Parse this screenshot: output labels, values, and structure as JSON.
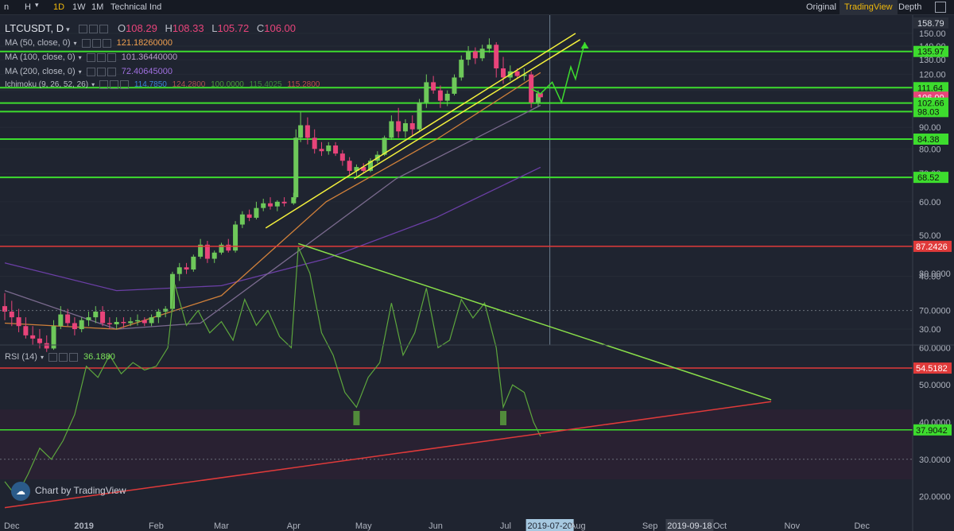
{
  "toolbar": {
    "left_items": [
      "n",
      "H",
      "1D",
      "1W",
      "1M",
      "Technical Ind"
    ],
    "active_item": "1D",
    "right_items": [
      "Original",
      "TradingView",
      "Depth"
    ],
    "active_right": "TradingView"
  },
  "legend": {
    "symbol": "LTCUSDT, D",
    "open_label": "O",
    "open": "108.29",
    "high_label": "H",
    "high": "108.33",
    "low_label": "L",
    "low": "105.72",
    "close_label": "C",
    "close": "106.00",
    "ma50_label": "MA (50, close, 0)",
    "ma50_value": "121.18260000",
    "ma100_label": "MA (100, close, 0)",
    "ma100_value": "101.36440000",
    "ma200_label": "MA (200, close, 0)",
    "ma200_value": "72.40645000",
    "ichimoku_label": "Ichimoku (9, 26, 52, 26)",
    "ichimoku_values": [
      "114.7850",
      "124.2800",
      "100.0000",
      "115.4025",
      "115.2800"
    ],
    "rsi_label": "RSI (14)",
    "rsi_value": "36.1880"
  },
  "watermark": "Chart by TradingView",
  "colors": {
    "background": "#1f2430",
    "up": "#6ec85a",
    "down": "#e8447a",
    "hline": "#3ddc2e",
    "channel": "#f4f03c",
    "ma50": "#d0803a",
    "ma100": "#7a6a8e",
    "ma200": "#6b3fa6",
    "rsi_line": "#5da63d",
    "rsi_band": "#e03a3a"
  },
  "chart_data": [
    {
      "type": "candlestick",
      "title": "LTCUSDT, D",
      "x_tick_labels": [
        "Dec",
        "2019",
        "Feb",
        "Mar",
        "Apr",
        "May",
        "Jun",
        "Jul",
        "2019-07-20",
        "Aug",
        "Sep",
        "2019-09-18",
        "Oct",
        "Nov",
        "Dec"
      ],
      "y_tick_labels": [
        "150.00",
        "140.00",
        "130.00",
        "120.00",
        "110.00",
        "90.00",
        "80.00",
        "70.00",
        "60.00",
        "50.00",
        "40.00",
        "30.00"
      ],
      "ylim": [
        28,
        158
      ],
      "scale": "log",
      "price_labels": [
        {
          "text": "158.79",
          "value": 158.79,
          "kind": "top"
        },
        {
          "text": "135.97",
          "value": 135.97,
          "kind": "level"
        },
        {
          "text": "111.64",
          "value": 111.64,
          "kind": "level"
        },
        {
          "text": "106.00",
          "value": 106.0,
          "kind": "last"
        },
        {
          "text": "102.66",
          "value": 102.66,
          "kind": "level"
        },
        {
          "text": "98.03",
          "value": 98.03,
          "kind": "level"
        },
        {
          "text": "84.38",
          "value": 84.38,
          "kind": "level"
        },
        {
          "text": "68.52",
          "value": 68.52,
          "kind": "level"
        }
      ],
      "horizontal_levels": [
        135.97,
        111.64,
        102.66,
        98.03,
        84.38,
        68.52
      ],
      "candles": [
        {
          "d": "2018-11-28",
          "o": 34.0,
          "h": 36.5,
          "l": 31.5,
          "c": 33.0
        },
        {
          "d": "2018-12-01",
          "o": 33.0,
          "h": 35.0,
          "l": 30.5,
          "c": 32.0
        },
        {
          "d": "2018-12-04",
          "o": 32.0,
          "h": 33.5,
          "l": 29.5,
          "c": 30.5
        },
        {
          "d": "2018-12-07",
          "o": 30.5,
          "h": 32.0,
          "l": 28.5,
          "c": 29.0
        },
        {
          "d": "2018-12-10",
          "o": 29.0,
          "h": 30.5,
          "l": 27.5,
          "c": 28.5
        },
        {
          "d": "2018-12-13",
          "o": 28.5,
          "h": 30.0,
          "l": 27.0,
          "c": 27.8
        },
        {
          "d": "2018-12-16",
          "o": 27.8,
          "h": 29.0,
          "l": 26.5,
          "c": 27.0
        },
        {
          "d": "2018-12-19",
          "o": 27.0,
          "h": 31.5,
          "l": 26.8,
          "c": 30.5
        },
        {
          "d": "2018-12-22",
          "o": 30.5,
          "h": 34.0,
          "l": 30.0,
          "c": 32.5
        },
        {
          "d": "2018-12-25",
          "o": 32.5,
          "h": 33.5,
          "l": 30.5,
          "c": 31.0
        },
        {
          "d": "2018-12-28",
          "o": 31.0,
          "h": 32.0,
          "l": 29.0,
          "c": 30.0
        },
        {
          "d": "2018-12-31",
          "o": 30.0,
          "h": 32.0,
          "l": 29.5,
          "c": 31.5
        },
        {
          "d": "2019-01-03",
          "o": 31.5,
          "h": 33.0,
          "l": 30.5,
          "c": 32.0
        },
        {
          "d": "2019-01-06",
          "o": 32.0,
          "h": 34.0,
          "l": 31.0,
          "c": 33.0
        },
        {
          "d": "2019-01-09",
          "o": 33.0,
          "h": 34.0,
          "l": 30.5,
          "c": 31.0
        },
        {
          "d": "2019-01-12",
          "o": 31.0,
          "h": 32.0,
          "l": 30.0,
          "c": 30.8
        },
        {
          "d": "2019-01-15",
          "o": 30.8,
          "h": 32.0,
          "l": 30.0,
          "c": 31.2
        },
        {
          "d": "2019-01-18",
          "o": 31.2,
          "h": 32.0,
          "l": 30.2,
          "c": 31.0
        },
        {
          "d": "2019-01-21",
          "o": 31.0,
          "h": 32.0,
          "l": 30.5,
          "c": 31.3
        },
        {
          "d": "2019-01-24",
          "o": 31.3,
          "h": 32.5,
          "l": 30.6,
          "c": 31.5
        },
        {
          "d": "2019-01-27",
          "o": 31.5,
          "h": 32.0,
          "l": 30.5,
          "c": 31.0
        },
        {
          "d": "2019-01-30",
          "o": 31.0,
          "h": 32.5,
          "l": 30.5,
          "c": 32.0
        },
        {
          "d": "2019-02-02",
          "o": 32.0,
          "h": 33.5,
          "l": 31.0,
          "c": 33.0
        },
        {
          "d": "2019-02-05",
          "o": 33.0,
          "h": 34.0,
          "l": 32.0,
          "c": 33.5
        },
        {
          "d": "2019-02-08",
          "o": 33.5,
          "h": 41.0,
          "l": 33.0,
          "c": 40.5
        },
        {
          "d": "2019-02-11",
          "o": 40.5,
          "h": 43.0,
          "l": 39.0,
          "c": 42.0
        },
        {
          "d": "2019-02-14",
          "o": 42.0,
          "h": 43.0,
          "l": 40.5,
          "c": 41.5
        },
        {
          "d": "2019-02-17",
          "o": 41.5,
          "h": 45.0,
          "l": 41.0,
          "c": 44.5
        },
        {
          "d": "2019-02-20",
          "o": 44.5,
          "h": 49.0,
          "l": 44.0,
          "c": 47.5
        },
        {
          "d": "2019-02-23",
          "o": 47.5,
          "h": 48.5,
          "l": 43.0,
          "c": 44.0
        },
        {
          "d": "2019-02-26",
          "o": 44.0,
          "h": 46.0,
          "l": 43.0,
          "c": 45.5
        },
        {
          "d": "2019-03-01",
          "o": 45.5,
          "h": 48.0,
          "l": 45.0,
          "c": 47.5
        },
        {
          "d": "2019-03-04",
          "o": 47.5,
          "h": 49.0,
          "l": 45.5,
          "c": 46.0
        },
        {
          "d": "2019-03-07",
          "o": 46.0,
          "h": 54.0,
          "l": 45.5,
          "c": 53.0
        },
        {
          "d": "2019-03-10",
          "o": 53.0,
          "h": 57.0,
          "l": 52.0,
          "c": 56.0
        },
        {
          "d": "2019-03-13",
          "o": 56.0,
          "h": 57.5,
          "l": 54.0,
          "c": 55.0
        },
        {
          "d": "2019-03-16",
          "o": 55.0,
          "h": 60.0,
          "l": 54.5,
          "c": 58.0
        },
        {
          "d": "2019-03-19",
          "o": 58.0,
          "h": 61.0,
          "l": 57.0,
          "c": 59.5
        },
        {
          "d": "2019-03-22",
          "o": 59.5,
          "h": 61.5,
          "l": 57.5,
          "c": 58.5
        },
        {
          "d": "2019-03-25",
          "o": 58.5,
          "h": 60.5,
          "l": 57.0,
          "c": 60.0
        },
        {
          "d": "2019-03-28",
          "o": 60.0,
          "h": 61.5,
          "l": 58.5,
          "c": 59.5
        },
        {
          "d": "2019-04-01",
          "o": 59.5,
          "h": 63.0,
          "l": 59.0,
          "c": 61.5
        },
        {
          "d": "2019-04-02",
          "o": 61.5,
          "h": 89.0,
          "l": 61.0,
          "c": 85.0
        },
        {
          "d": "2019-04-04",
          "o": 85.0,
          "h": 98.0,
          "l": 83.0,
          "c": 91.0
        },
        {
          "d": "2019-04-07",
          "o": 91.0,
          "h": 95.0,
          "l": 82.0,
          "c": 85.0
        },
        {
          "d": "2019-04-10",
          "o": 85.0,
          "h": 89.0,
          "l": 78.0,
          "c": 80.0
        },
        {
          "d": "2019-04-13",
          "o": 80.0,
          "h": 83.0,
          "l": 77.0,
          "c": 79.0
        },
        {
          "d": "2019-04-16",
          "o": 79.0,
          "h": 83.0,
          "l": 77.5,
          "c": 81.5
        },
        {
          "d": "2019-04-19",
          "o": 81.5,
          "h": 83.0,
          "l": 77.0,
          "c": 78.0
        },
        {
          "d": "2019-04-22",
          "o": 78.0,
          "h": 79.5,
          "l": 73.0,
          "c": 75.0
        },
        {
          "d": "2019-04-25",
          "o": 75.0,
          "h": 76.5,
          "l": 69.0,
          "c": 71.0
        },
        {
          "d": "2019-04-28",
          "o": 71.0,
          "h": 73.5,
          "l": 69.0,
          "c": 72.5
        },
        {
          "d": "2019-05-01",
          "o": 72.5,
          "h": 74.0,
          "l": 70.0,
          "c": 71.0
        },
        {
          "d": "2019-05-04",
          "o": 71.0,
          "h": 76.0,
          "l": 70.5,
          "c": 75.0
        },
        {
          "d": "2019-05-07",
          "o": 75.0,
          "h": 79.0,
          "l": 74.0,
          "c": 77.5
        },
        {
          "d": "2019-05-10",
          "o": 77.5,
          "h": 86.0,
          "l": 77.0,
          "c": 85.0
        },
        {
          "d": "2019-05-13",
          "o": 85.0,
          "h": 96.0,
          "l": 84.0,
          "c": 93.0
        },
        {
          "d": "2019-05-16",
          "o": 93.0,
          "h": 100.0,
          "l": 85.0,
          "c": 88.0
        },
        {
          "d": "2019-05-19",
          "o": 88.0,
          "h": 94.0,
          "l": 85.0,
          "c": 92.0
        },
        {
          "d": "2019-05-22",
          "o": 92.0,
          "h": 96.0,
          "l": 86.0,
          "c": 89.0
        },
        {
          "d": "2019-05-25",
          "o": 89.0,
          "h": 105.0,
          "l": 88.0,
          "c": 103.0
        },
        {
          "d": "2019-05-28",
          "o": 103.0,
          "h": 120.0,
          "l": 100.0,
          "c": 115.0
        },
        {
          "d": "2019-05-31",
          "o": 115.0,
          "h": 119.0,
          "l": 108.0,
          "c": 110.0
        },
        {
          "d": "2019-06-03",
          "o": 110.0,
          "h": 113.0,
          "l": 100.0,
          "c": 104.0
        },
        {
          "d": "2019-06-06",
          "o": 104.0,
          "h": 110.0,
          "l": 101.0,
          "c": 108.0
        },
        {
          "d": "2019-06-09",
          "o": 108.0,
          "h": 120.0,
          "l": 107.0,
          "c": 118.0
        },
        {
          "d": "2019-06-12",
          "o": 118.0,
          "h": 133.0,
          "l": 116.0,
          "c": 130.0
        },
        {
          "d": "2019-06-15",
          "o": 130.0,
          "h": 140.0,
          "l": 126.0,
          "c": 136.0
        },
        {
          "d": "2019-06-18",
          "o": 136.0,
          "h": 139.0,
          "l": 127.0,
          "c": 131.0
        },
        {
          "d": "2019-06-21",
          "o": 131.0,
          "h": 141.0,
          "l": 129.0,
          "c": 138.0
        },
        {
          "d": "2019-06-24",
          "o": 138.0,
          "h": 146.0,
          "l": 135.0,
          "c": 141.0
        },
        {
          "d": "2019-06-27",
          "o": 141.0,
          "h": 143.0,
          "l": 118.0,
          "c": 124.0
        },
        {
          "d": "2019-06-30",
          "o": 124.0,
          "h": 132.0,
          "l": 114.0,
          "c": 118.0
        },
        {
          "d": "2019-07-03",
          "o": 118.0,
          "h": 126.0,
          "l": 116.0,
          "c": 122.0
        },
        {
          "d": "2019-07-06",
          "o": 122.0,
          "h": 124.0,
          "l": 117.0,
          "c": 119.0
        },
        {
          "d": "2019-07-09",
          "o": 119.0,
          "h": 124.0,
          "l": 116.0,
          "c": 120.0
        },
        {
          "d": "2019-07-12",
          "o": 120.0,
          "h": 122.0,
          "l": 100.0,
          "c": 103.0
        },
        {
          "d": "2019-07-15",
          "o": 103.0,
          "h": 110.0,
          "l": 101.0,
          "c": 108.3
        },
        {
          "d": "2019-07-16",
          "o": 108.29,
          "h": 108.33,
          "l": 105.72,
          "c": 106.0
        }
      ],
      "channel_lines": [
        {
          "name": "upper",
          "points": [
            [
              "2019-03-20",
              52
            ],
            [
              "2019-07-31",
              150
            ]
          ]
        },
        {
          "name": "lower",
          "points": [
            [
              "2019-04-27",
              68
            ],
            [
              "2019-08-02",
              145
            ]
          ]
        }
      ],
      "projection": [
        [
          "2019-07-12",
          111
        ],
        [
          "2019-07-16",
          108
        ],
        [
          "2019-07-21",
          115
        ],
        [
          "2019-07-25",
          103
        ],
        [
          "2019-07-29",
          125
        ],
        [
          "2019-07-31",
          117
        ],
        [
          "2019-08-04",
          143
        ]
      ],
      "ma200": [
        [
          "2018-11-28",
          43
        ],
        [
          "2019-01-15",
          37
        ],
        [
          "2019-03-01",
          38
        ],
        [
          "2019-04-15",
          44
        ],
        [
          "2019-06-01",
          55
        ],
        [
          "2019-07-16",
          72.4
        ]
      ],
      "ma100": [
        [
          "2018-11-28",
          37
        ],
        [
          "2019-01-15",
          30
        ],
        [
          "2019-02-20",
          31
        ],
        [
          "2019-04-01",
          45
        ],
        [
          "2019-05-15",
          68
        ],
        [
          "2019-07-16",
          101.4
        ]
      ],
      "ma50": [
        [
          "2018-11-28",
          31
        ],
        [
          "2019-01-15",
          30
        ],
        [
          "2019-03-01",
          36
        ],
        [
          "2019-04-15",
          60
        ],
        [
          "2019-06-01",
          84
        ],
        [
          "2019-07-16",
          121.2
        ]
      ],
      "crosshair_date": "2019-07-20"
    },
    {
      "type": "line",
      "title": "RSI (14)",
      "y_tick_labels": [
        "80.0000",
        "70.0000",
        "60.0000",
        "50.0000",
        "40.0000",
        "30.0000",
        "20.0000"
      ],
      "ylim": [
        15,
        90
      ],
      "price_labels": [
        {
          "text": "87.2426",
          "value": 87.2426,
          "kind": "red"
        },
        {
          "text": "54.5182",
          "value": 54.5182,
          "kind": "red"
        },
        {
          "text": "37.9042",
          "value": 37.9042,
          "kind": "green"
        }
      ],
      "dashed_levels": [
        70,
        30
      ],
      "rsi": [
        [
          "2018-11-28",
          24
        ],
        [
          "2018-12-03",
          20
        ],
        [
          "2018-12-08",
          26
        ],
        [
          "2018-12-13",
          33
        ],
        [
          "2018-12-18",
          30
        ],
        [
          "2018-12-23",
          35
        ],
        [
          "2018-12-28",
          42
        ],
        [
          "2019-01-02",
          55
        ],
        [
          "2019-01-07",
          52
        ],
        [
          "2019-01-12",
          58
        ],
        [
          "2019-01-17",
          53
        ],
        [
          "2019-01-22",
          56
        ],
        [
          "2019-01-27",
          54
        ],
        [
          "2019-02-01",
          55
        ],
        [
          "2019-02-06",
          60
        ],
        [
          "2019-02-09",
          77
        ],
        [
          "2019-02-14",
          66
        ],
        [
          "2019-02-19",
          70
        ],
        [
          "2019-02-24",
          64
        ],
        [
          "2019-03-01",
          67
        ],
        [
          "2019-03-06",
          62
        ],
        [
          "2019-03-11",
          73
        ],
        [
          "2019-03-16",
          66
        ],
        [
          "2019-03-21",
          70
        ],
        [
          "2019-03-26",
          63
        ],
        [
          "2019-03-31",
          60
        ],
        [
          "2019-04-03",
          87
        ],
        [
          "2019-04-08",
          80
        ],
        [
          "2019-04-13",
          64
        ],
        [
          "2019-04-18",
          58
        ],
        [
          "2019-04-23",
          48
        ],
        [
          "2019-04-28",
          44
        ],
        [
          "2019-05-03",
          52
        ],
        [
          "2019-05-08",
          56
        ],
        [
          "2019-05-13",
          72
        ],
        [
          "2019-05-18",
          58
        ],
        [
          "2019-05-23",
          64
        ],
        [
          "2019-05-28",
          76
        ],
        [
          "2019-06-02",
          60
        ],
        [
          "2019-06-07",
          62
        ],
        [
          "2019-06-12",
          73
        ],
        [
          "2019-06-17",
          68
        ],
        [
          "2019-06-22",
          72
        ],
        [
          "2019-06-27",
          60
        ],
        [
          "2019-06-30",
          44
        ],
        [
          "2019-07-04",
          50
        ],
        [
          "2019-07-09",
          48
        ],
        [
          "2019-07-13",
          40
        ],
        [
          "2019-07-16",
          36.19
        ]
      ],
      "trendlines": [
        {
          "name": "resistance",
          "color": "green",
          "points": [
            [
              "2019-04-03",
              88
            ],
            [
              "2019-10-23",
              46
            ]
          ]
        },
        {
          "name": "support",
          "color": "red",
          "points": [
            [
              "2018-11-28",
              17
            ],
            [
              "2019-10-23",
              45.5
            ]
          ]
        }
      ],
      "markers": [
        [
          "2019-04-28",
          40
        ],
        [
          "2019-06-30",
          40
        ]
      ]
    }
  ]
}
